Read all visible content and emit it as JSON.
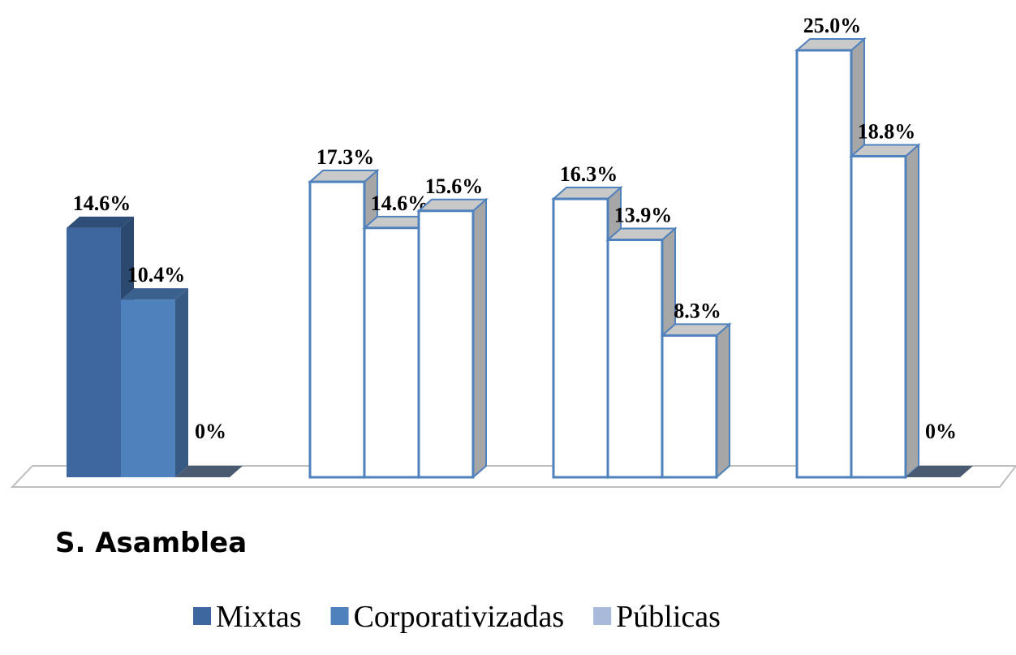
{
  "chart_data": {
    "type": "bar3d",
    "categories": [
      "S. Asamblea",
      null,
      null,
      null
    ],
    "series": [
      {
        "name": "Mixtas",
        "color": "#3d679e",
        "values": [
          14.6,
          17.3,
          16.3,
          25.0
        ],
        "value_labels": [
          "14.6%",
          "17.3%",
          "16.3%",
          "25.0%"
        ]
      },
      {
        "name": "Corporativizadas",
        "color": "#4f81bd",
        "values": [
          10.4,
          14.6,
          13.9,
          18.8
        ],
        "value_labels": [
          "10.4%",
          "14.6%",
          "13.9%",
          "18.8%"
        ]
      },
      {
        "name": "Públicas",
        "color": "#a9b9d9",
        "values": [
          0,
          15.6,
          8.3,
          0
        ],
        "value_labels": [
          "0%",
          "15.6%",
          "8.3%",
          "0%"
        ]
      }
    ],
    "legend": "bottom"
  }
}
